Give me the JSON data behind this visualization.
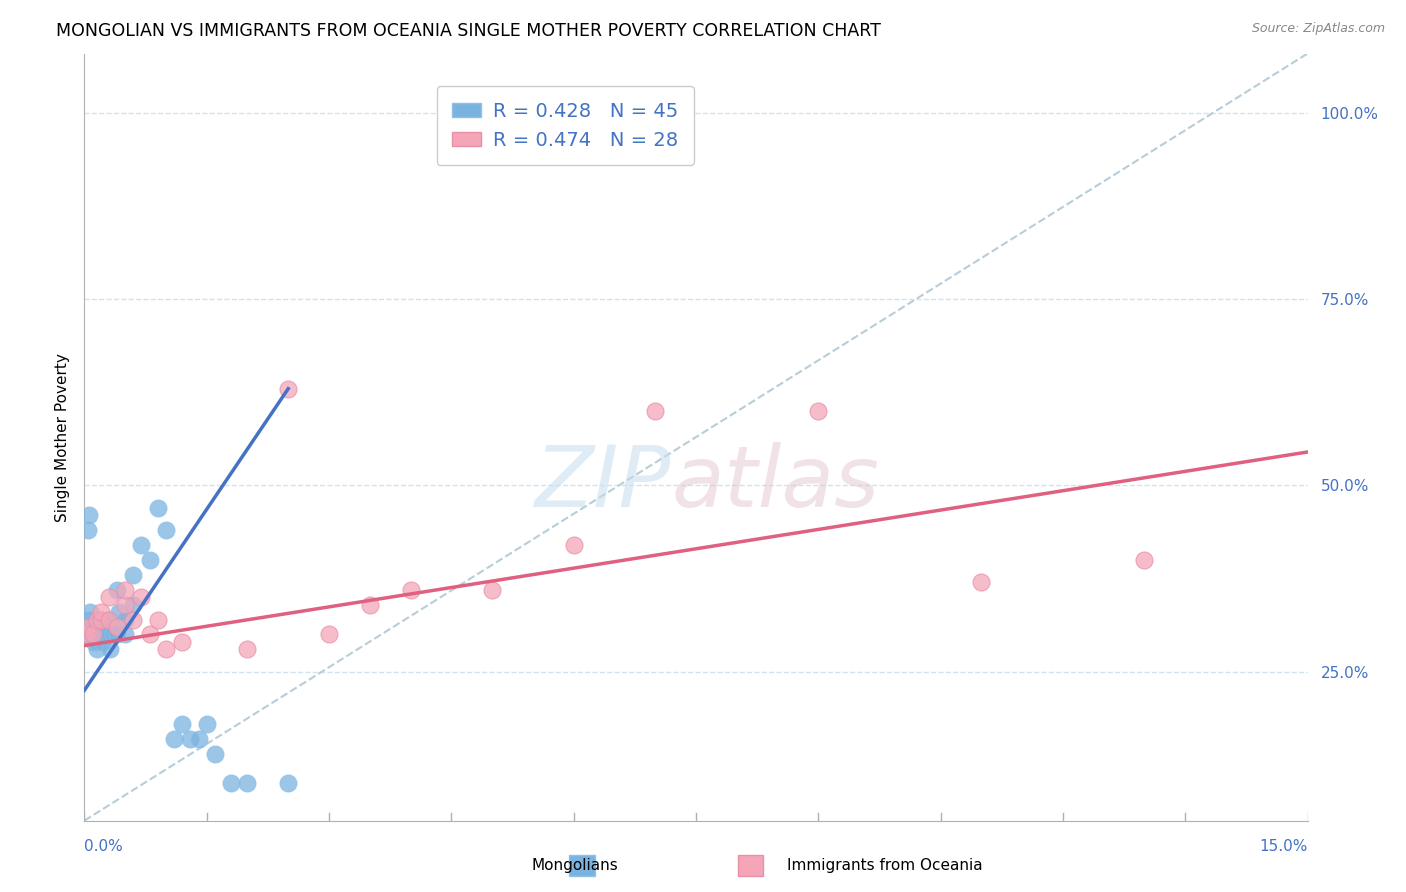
{
  "title": "MONGOLIAN VS IMMIGRANTS FROM OCEANIA SINGLE MOTHER POVERTY CORRELATION CHART",
  "source": "Source: ZipAtlas.com",
  "ylabel": "Single Mother Poverty",
  "legend_mongolians": "Mongolians",
  "legend_oceania": "Immigrants from Oceania",
  "r_mongolians": 0.428,
  "n_mongolians": 45,
  "r_oceania": 0.474,
  "n_oceania": 28,
  "color_mongolians": "#7ab3e0",
  "color_mongolians_line": "#4472c4",
  "color_oceania": "#f4a6b8",
  "color_oceania_line": "#e06080",
  "color_diagonal": "#b8cdd8",
  "background": "#ffffff",
  "grid_color": "#d0e4f0",
  "mongolians_x": [
    0.0002,
    0.0003,
    0.0004,
    0.0005,
    0.0006,
    0.0007,
    0.0008,
    0.0009,
    0.001,
    0.0012,
    0.0013,
    0.0014,
    0.0015,
    0.0016,
    0.0017,
    0.0018,
    0.002,
    0.002,
    0.0022,
    0.0024,
    0.0026,
    0.003,
    0.003,
    0.0032,
    0.0035,
    0.004,
    0.004,
    0.0042,
    0.005,
    0.005,
    0.006,
    0.006,
    0.007,
    0.008,
    0.009,
    0.01,
    0.011,
    0.012,
    0.013,
    0.014,
    0.015,
    0.016,
    0.018,
    0.02,
    0.025
  ],
  "mongolians_y": [
    0.31,
    0.3,
    0.32,
    0.44,
    0.46,
    0.33,
    0.31,
    0.3,
    0.31,
    0.29,
    0.31,
    0.31,
    0.28,
    0.29,
    0.3,
    0.3,
    0.3,
    0.32,
    0.29,
    0.3,
    0.31,
    0.3,
    0.32,
    0.28,
    0.3,
    0.3,
    0.36,
    0.33,
    0.3,
    0.32,
    0.38,
    0.34,
    0.42,
    0.4,
    0.47,
    0.44,
    0.16,
    0.18,
    0.16,
    0.16,
    0.18,
    0.14,
    0.1,
    0.1,
    0.1
  ],
  "oceania_x": [
    0.0003,
    0.0005,
    0.001,
    0.0015,
    0.002,
    0.002,
    0.003,
    0.003,
    0.004,
    0.005,
    0.005,
    0.006,
    0.007,
    0.008,
    0.009,
    0.01,
    0.012,
    0.02,
    0.025,
    0.03,
    0.035,
    0.04,
    0.05,
    0.06,
    0.07,
    0.09,
    0.11,
    0.13
  ],
  "oceania_y": [
    0.3,
    0.31,
    0.3,
    0.32,
    0.32,
    0.33,
    0.32,
    0.35,
    0.31,
    0.34,
    0.36,
    0.32,
    0.35,
    0.3,
    0.32,
    0.28,
    0.29,
    0.28,
    0.63,
    0.3,
    0.34,
    0.36,
    0.36,
    0.42,
    0.6,
    0.6,
    0.37,
    0.4
  ],
  "xlim": [
    0.0,
    0.15
  ],
  "ylim": [
    0.05,
    1.08
  ],
  "yticks": [
    0.25,
    0.5,
    0.75,
    1.0
  ],
  "ytick_labels": [
    "25.0%",
    "50.0%",
    "75.0%",
    "100.0%"
  ],
  "blue_line_x": [
    0.0,
    0.025
  ],
  "blue_line_y": [
    0.225,
    0.63
  ],
  "pink_line_x": [
    0.0,
    0.15
  ],
  "pink_line_y": [
    0.285,
    0.545
  ]
}
